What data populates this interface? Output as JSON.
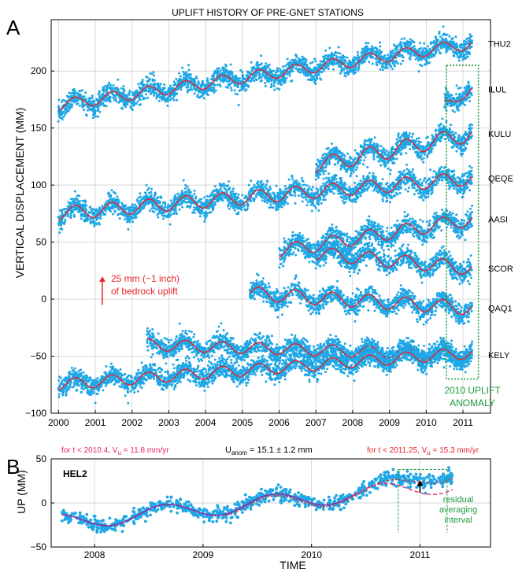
{
  "chart_data": [
    {
      "type": "scatter",
      "panel_label": "A",
      "title": "UPLIFT HISTORY OF PRE-GNET STATIONS",
      "xlabel": "",
      "ylabel": "VERTICAL DISPLACEMENT (MM)",
      "xlim": [
        1999.8,
        2011.75
      ],
      "ylim": [
        -100,
        245
      ],
      "x_ticks": [
        2000,
        2001,
        2002,
        2003,
        2004,
        2005,
        2006,
        2007,
        2008,
        2009,
        2010,
        2011
      ],
      "x_tick_labels": [
        "2000",
        "2001",
        "2002",
        "2003",
        "2004",
        "2005",
        "2006",
        "2007",
        "2008",
        "2009",
        "2010",
        "2011"
      ],
      "y_ticks": [
        -100,
        -50,
        0,
        50,
        100,
        150,
        200
      ],
      "y_tick_labels": [
        "−100",
        "−50",
        "0",
        "50",
        "100",
        "150",
        "200"
      ],
      "grid": true,
      "point_color": "#1ea7e6",
      "fit_color": "#e8242c",
      "stations": [
        {
          "name": "THU2",
          "start": 2000.0,
          "end": 2011.25,
          "y_start": 170,
          "y_end": 224,
          "amp": 5
        },
        {
          "name": "ILUL",
          "start": 2010.5,
          "end": 2011.25,
          "y_start": 170,
          "y_end": 184,
          "amp": 4
        },
        {
          "name": "KULU",
          "start": 2007.0,
          "end": 2011.25,
          "y_start": 117,
          "y_end": 145,
          "amp": 7
        },
        {
          "name": "QEQE",
          "start": 2000.0,
          "end": 2011.25,
          "y_start": 75,
          "y_end": 106,
          "amp": 6
        },
        {
          "name": "AASI",
          "start": 2006.0,
          "end": 2011.25,
          "y_start": 42,
          "y_end": 70,
          "amp": 6
        },
        {
          "name": "SCOR",
          "start": 2007.0,
          "end": 2011.25,
          "y_start": 40,
          "y_end": 27,
          "amp": 6
        },
        {
          "name": "QAQ1",
          "start": 2005.2,
          "end": 2011.25,
          "y_start": 5,
          "y_end": -8,
          "amp": 6
        },
        {
          "name": "KELY",
          "start": 2002.4,
          "end": 2011.25,
          "y_start": -40,
          "y_end": -49,
          "amp": 5
        },
        {
          "name": "",
          "start": 2000.0,
          "end": 2011.25,
          "y_start": -75,
          "y_end": -47,
          "amp": 5
        }
      ],
      "annotations": {
        "uplift_label_1": "25 mm (~1 inch)",
        "uplift_label_2": "of bedrock uplift",
        "uplift_arrow_mm": 25,
        "anomaly_label_1": "2010 UPLIFT",
        "anomaly_label_2": "ANOMALY",
        "anomaly_window": [
          2010.55,
          2011.25
        ],
        "annotation_color": "#e8242c",
        "anomaly_color": "#1f9a3e"
      }
    },
    {
      "type": "scatter",
      "panel_label": "B",
      "station": "HEL2",
      "xlabel": "TIME",
      "ylabel": "UP (MM)",
      "xlim": [
        2007.6,
        2011.65
      ],
      "ylim": [
        -50,
        50
      ],
      "x_ticks": [
        2008,
        2009,
        2010,
        2011
      ],
      "x_tick_labels": [
        "2008",
        "2009",
        "2010",
        "2011"
      ],
      "y_ticks": [
        -50,
        0,
        50
      ],
      "y_tick_labels": [
        "−50",
        "0",
        "50"
      ],
      "grid": true,
      "point_color": "#1ea7e6",
      "fit_early_color": "#8b2fa0",
      "fit_late_color": "#e8246e",
      "data_start": 2007.7,
      "data_end": 2011.3,
      "trend_early_mm_per_yr": 11.8,
      "trend_late_mm_per_yr": 15.3,
      "annotations": {
        "left_label": "for t < 2010.4,  V",
        "left_sub": "u",
        "left_value": " = 11.8 mm/yr",
        "mid_label": "U",
        "mid_sub": "anom",
        "mid_value": " = 15.1 ± 1.2 mm",
        "right_label": "for t < 2011.25,  V",
        "right_sub": "u",
        "right_value": " = 15.3 mm/yr",
        "residual_1": "residual",
        "residual_2": "averaging",
        "residual_3": "interval",
        "residual_window": [
          2010.8,
          2011.25
        ],
        "left_color": "#e8246e",
        "right_color": "#e8242c",
        "residual_color": "#1f9a3e"
      }
    }
  ]
}
